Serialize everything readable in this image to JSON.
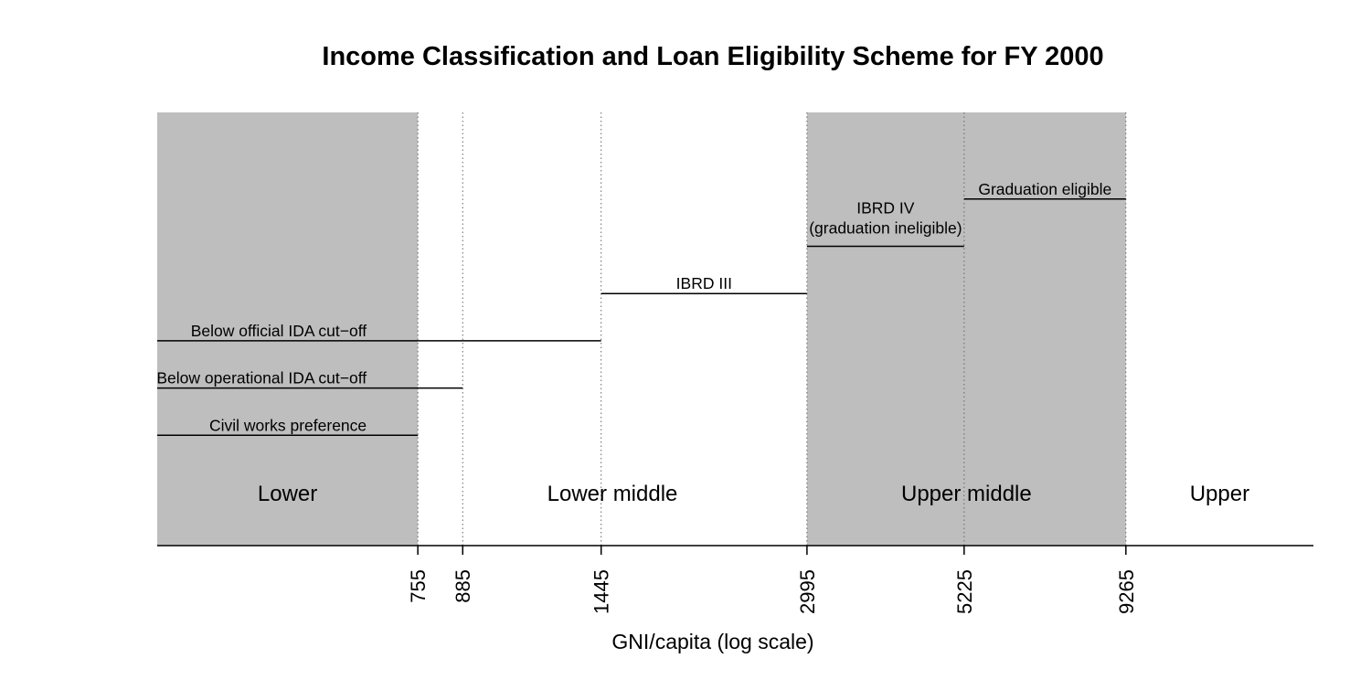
{
  "chart_data": {
    "type": "bar",
    "title": "Income Classification and Loan Eligibility Scheme for FY 2000",
    "xlabel": "GNI/capita (log scale)",
    "x_scale": "log",
    "xlim": [
      300,
      18000
    ],
    "thresholds": [
      755,
      885,
      1445,
      2995,
      5225,
      9265
    ],
    "tick_labels": [
      "755",
      "885",
      "1445",
      "2995",
      "5225",
      "9265"
    ],
    "income_bands": [
      {
        "name": "Lower",
        "from": 300,
        "to": 755,
        "shaded": true
      },
      {
        "name": "Lower middle",
        "from": 755,
        "to": 2995,
        "shaded": false
      },
      {
        "name": "Upper middle",
        "from": 2995,
        "to": 9265,
        "shaded": true
      },
      {
        "name": "Upper",
        "from": 9265,
        "to": 18000,
        "shaded": false
      }
    ],
    "eligibility_ranges": [
      {
        "label": "Civil works preference",
        "from": 300,
        "to": 755,
        "level": 1
      },
      {
        "label": "Below operational IDA cut−off",
        "from": 300,
        "to": 885,
        "level": 2
      },
      {
        "label": "Below official IDA cut−off",
        "from": 300,
        "to": 1445,
        "level": 3
      },
      {
        "label": "IBRD III",
        "from": 1445,
        "to": 2995,
        "level": 4
      },
      {
        "label": "IBRD IV",
        "label2": "(graduation ineligible)",
        "from": 2995,
        "to": 5225,
        "level": 5
      },
      {
        "label": "Graduation eligible",
        "from": 5225,
        "to": 9265,
        "level": 6
      }
    ],
    "colors": {
      "shade": "#bebebe",
      "line": "#000000",
      "grid": "#666666"
    }
  }
}
